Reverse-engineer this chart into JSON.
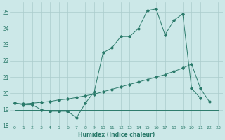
{
  "bg_color": "#cce8e8",
  "grid_color": "#aacccc",
  "line_color": "#2a7a6a",
  "xlabel": "Humidex (Indice chaleur)",
  "xlim": [
    -0.5,
    23.5
  ],
  "ylim": [
    18,
    25.6
  ],
  "yticks": [
    18,
    19,
    20,
    21,
    22,
    23,
    24,
    25
  ],
  "xticks": [
    0,
    1,
    2,
    3,
    4,
    5,
    6,
    7,
    8,
    9,
    10,
    11,
    12,
    13,
    14,
    15,
    16,
    17,
    18,
    19,
    20,
    21,
    22,
    23
  ],
  "line1_x": [
    0,
    1,
    2,
    3,
    4,
    5,
    6,
    7,
    8,
    9,
    10,
    11,
    12,
    13,
    14,
    15,
    16,
    17,
    18,
    19,
    20,
    21,
    22,
    23
  ],
  "line1_y": [
    19.4,
    19.3,
    19.3,
    19.0,
    18.9,
    18.9,
    18.9,
    18.5,
    19.4,
    20.1,
    22.5,
    22.8,
    23.5,
    23.5,
    24.0,
    25.1,
    25.2,
    23.6,
    24.5,
    24.9,
    20.3,
    19.7,
    null,
    null
  ],
  "line2_x": [
    0,
    1,
    2,
    3,
    4,
    5,
    6,
    7,
    8,
    9,
    10,
    11,
    12,
    13,
    14,
    15,
    16,
    17,
    18,
    19,
    20,
    21,
    22,
    23
  ],
  "line2_y": [
    19.4,
    19.35,
    19.4,
    19.45,
    19.5,
    19.6,
    19.65,
    19.75,
    19.85,
    19.95,
    20.1,
    20.25,
    20.4,
    20.55,
    20.7,
    20.85,
    21.0,
    21.15,
    21.35,
    21.55,
    21.8,
    20.3,
    19.5,
    null
  ],
  "line3_x": [
    0,
    23
  ],
  "line3_y": [
    19.0,
    19.0
  ]
}
